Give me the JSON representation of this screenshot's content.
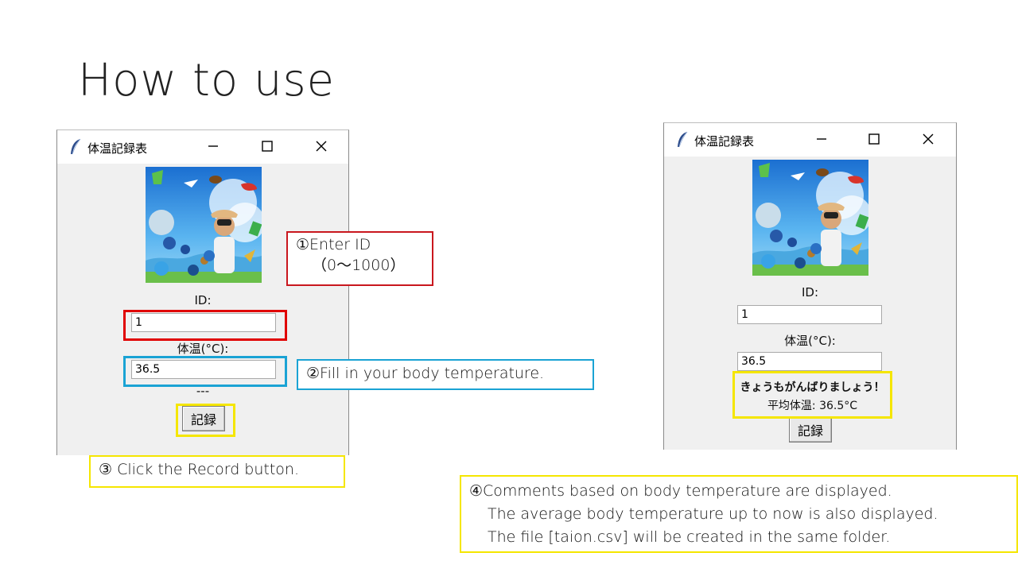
{
  "slide": {
    "title": "How to use"
  },
  "window_left": {
    "title": "体温記録表",
    "id_label": "ID:",
    "id_value": "1",
    "temp_label": "体温(°C):",
    "temp_value": "36.5",
    "status_text": "---",
    "record_button": "記録"
  },
  "window_right": {
    "title": "体温記録表",
    "id_label": "ID:",
    "id_value": "1",
    "temp_label": "体温(°C):",
    "temp_value": "36.5",
    "comment_line1": "きょうもがんばりましょう！",
    "comment_line2": "平均体温: 36.5°C",
    "record_button": "記録"
  },
  "callouts": {
    "step1_line1": "①Enter ID",
    "step1_line2": "（0～1000）",
    "step2": "②Fill in your body temperature.",
    "step3": "③ Click the Record button.",
    "step4_line1": "④Comments based on body temperature are displayed.",
    "step4_line2": "The average body temperature up to now is also displayed.",
    "step4_line3": "The file [taion.csv] will be created in the same folder."
  },
  "colors": {
    "red": "#e00000",
    "blue": "#1aa3d4",
    "yellow": "#f5e600"
  },
  "icons": {
    "window_icon": "feather-icon",
    "minimize": "minimize-icon",
    "maximize": "maximize-icon",
    "close": "close-icon"
  }
}
